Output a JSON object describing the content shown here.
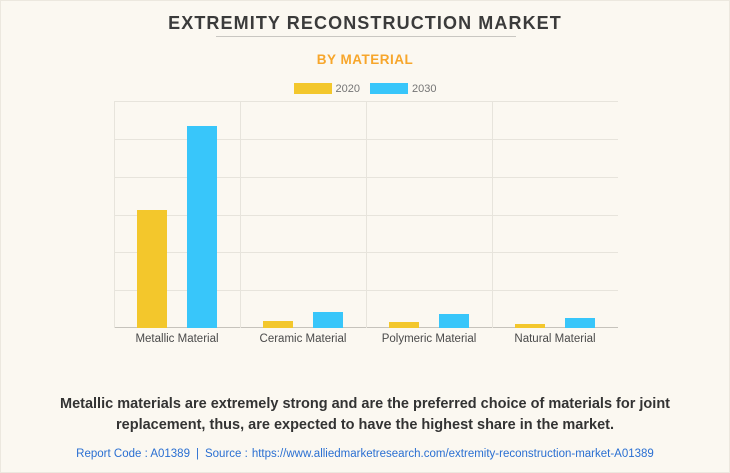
{
  "page": {
    "title": "EXTREMITY RECONSTRUCTION MARKET",
    "subtitle": "BY MATERIAL"
  },
  "legend": [
    {
      "label": "2020",
      "color": "#F3C72C"
    },
    {
      "label": "2030",
      "color": "#38C6FA"
    }
  ],
  "chart_data": {
    "type": "bar",
    "title": "EXTREMITY RECONSTRUCTION MARKET",
    "subtitle": "BY MATERIAL",
    "categories": [
      "Metallic Material",
      "Ceramic Material",
      "Polymeric Material",
      "Natural Material"
    ],
    "series": [
      {
        "name": "2020",
        "color": "#F3C72C",
        "values": [
          52,
          3.1,
          2.7,
          1.6
        ]
      },
      {
        "name": "2030",
        "color": "#38C6FA",
        "values": [
          89,
          7.2,
          6.3,
          4.6
        ]
      }
    ],
    "xlabel": "",
    "ylabel": "",
    "ylim": [
      0,
      100
    ],
    "y_axis_tick_labels_visible": false,
    "gridline_intervals": 6,
    "grid": "on",
    "legend_position": "top"
  },
  "description": {
    "lines": [
      "Metallic materials are extremely strong and are the preferred choice of materials for joint",
      "replacement, thus, are expected to have the highest share in the market."
    ]
  },
  "footer": {
    "report_code": "Report Code : A01389",
    "separator": "|",
    "source_label": "Source :",
    "source_url": "https://www.alliedmarketresearch.com/extremity-reconstruction-market-A01389"
  },
  "colors": {
    "background": "#FBF8F1",
    "title_text": "#3B3B3B",
    "subtitle_accent": "#F7A62B",
    "series_2020": "#F3C72C",
    "series_2030": "#38C6FA",
    "gridline": "#E7E4DC",
    "axis_line": "#C6C3BC",
    "footer_link": "#2A6FD2"
  }
}
